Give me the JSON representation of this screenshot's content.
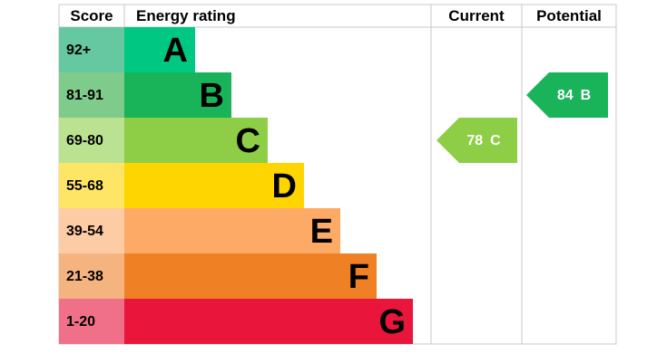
{
  "chart_data": {
    "type": "epc",
    "headers": [
      "Score",
      "Energy rating",
      "Current",
      "Potential"
    ],
    "bands": [
      {
        "range": "92+",
        "letter": "A",
        "color": "#00c781",
        "score_color": "#66c8a0"
      },
      {
        "range": "81-91",
        "letter": "B",
        "color": "#19b459",
        "score_color": "#7ecb8b"
      },
      {
        "range": "69-80",
        "letter": "C",
        "color": "#8dce46",
        "score_color": "#bbe290"
      },
      {
        "range": "55-68",
        "letter": "D",
        "color": "#ffd500",
        "score_color": "#ffe566"
      },
      {
        "range": "39-54",
        "letter": "E",
        "color": "#fcaa65",
        "score_color": "#fdcca4"
      },
      {
        "range": "21-38",
        "letter": "F",
        "color": "#ef8023",
        "score_color": "#f5b380"
      },
      {
        "range": "1-20",
        "letter": "G",
        "color": "#e9153b",
        "score_color": "#f07089"
      }
    ],
    "current": {
      "value": 78,
      "rating": "C"
    },
    "potential": {
      "value": 84,
      "rating": "B"
    }
  }
}
